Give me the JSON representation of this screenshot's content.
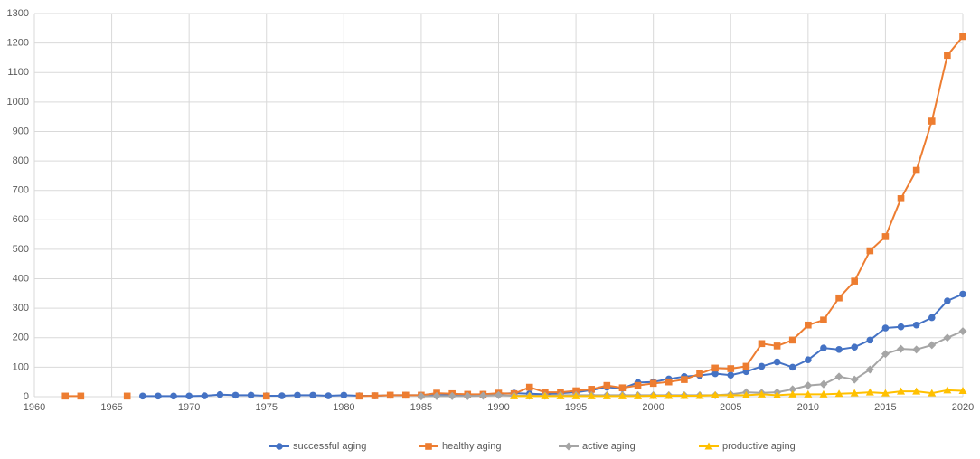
{
  "chart_data": {
    "type": "line",
    "x": [
      1962,
      1963,
      1964,
      1965,
      1966,
      1967,
      1968,
      1969,
      1970,
      1971,
      1972,
      1973,
      1974,
      1975,
      1976,
      1977,
      1978,
      1979,
      1980,
      1981,
      1982,
      1983,
      1984,
      1985,
      1986,
      1987,
      1988,
      1989,
      1990,
      1991,
      1992,
      1993,
      1994,
      1995,
      1996,
      1997,
      1998,
      1999,
      2000,
      2001,
      2002,
      2003,
      2004,
      2005,
      2006,
      2007,
      2008,
      2009,
      2010,
      2011,
      2012,
      2013,
      2014,
      2015,
      2016,
      2017,
      2018,
      2019,
      2020
    ],
    "series": [
      {
        "name": "successful aging",
        "color": "#4472c4",
        "marker": "circle",
        "values": [
          null,
          null,
          null,
          null,
          null,
          2,
          2,
          2,
          2,
          3,
          7,
          5,
          5,
          3,
          3,
          5,
          5,
          3,
          5,
          3,
          3,
          5,
          5,
          5,
          5,
          7,
          7,
          8,
          10,
          12,
          10,
          8,
          12,
          15,
          22,
          32,
          28,
          48,
          50,
          60,
          68,
          72,
          78,
          73,
          85,
          103,
          118,
          100,
          125,
          165,
          160,
          168,
          192,
          233,
          237,
          243,
          268,
          325,
          348
        ]
      },
      {
        "name": "healthy aging",
        "color": "#ed7d31",
        "marker": "square",
        "values": [
          2,
          2,
          null,
          null,
          2,
          null,
          null,
          null,
          null,
          null,
          null,
          null,
          null,
          2,
          null,
          null,
          null,
          null,
          null,
          2,
          3,
          5,
          5,
          5,
          12,
          10,
          8,
          8,
          12,
          10,
          32,
          15,
          15,
          20,
          25,
          38,
          30,
          38,
          45,
          50,
          58,
          78,
          97,
          95,
          103,
          180,
          172,
          192,
          243,
          260,
          335,
          392,
          495,
          543,
          672,
          768,
          935,
          1158,
          1222
        ]
      },
      {
        "name": "active aging",
        "color": "#a5a5a5",
        "marker": "diamond",
        "values": [
          null,
          null,
          null,
          null,
          null,
          null,
          null,
          null,
          null,
          null,
          null,
          null,
          null,
          null,
          null,
          null,
          null,
          null,
          null,
          null,
          null,
          null,
          null,
          1,
          2,
          2,
          2,
          3,
          5,
          3,
          3,
          3,
          5,
          5,
          5,
          5,
          5,
          5,
          5,
          5,
          5,
          5,
          5,
          8,
          15,
          13,
          15,
          25,
          38,
          42,
          68,
          58,
          92,
          145,
          162,
          160,
          175,
          200,
          222
        ]
      },
      {
        "name": "productive aging",
        "color": "#ffc000",
        "marker": "triangle",
        "values": [
          null,
          null,
          null,
          null,
          null,
          null,
          null,
          null,
          null,
          null,
          null,
          null,
          null,
          null,
          null,
          null,
          null,
          null,
          null,
          null,
          null,
          null,
          null,
          null,
          null,
          null,
          null,
          null,
          null,
          2,
          2,
          2,
          2,
          2,
          2,
          2,
          2,
          2,
          3,
          3,
          3,
          3,
          5,
          5,
          5,
          8,
          5,
          8,
          8,
          8,
          10,
          12,
          15,
          12,
          18,
          18,
          12,
          22,
          20
        ]
      }
    ],
    "xlim": [
      1960,
      2020
    ],
    "xticks": [
      1960,
      1965,
      1970,
      1975,
      1980,
      1985,
      1990,
      1995,
      2000,
      2005,
      2010,
      2015,
      2020
    ],
    "ylim": [
      0,
      1300
    ],
    "yticks": [
      0,
      100,
      200,
      300,
      400,
      500,
      600,
      700,
      800,
      900,
      1000,
      1100,
      1200,
      1300
    ],
    "grid": true,
    "legend": "bottom"
  }
}
